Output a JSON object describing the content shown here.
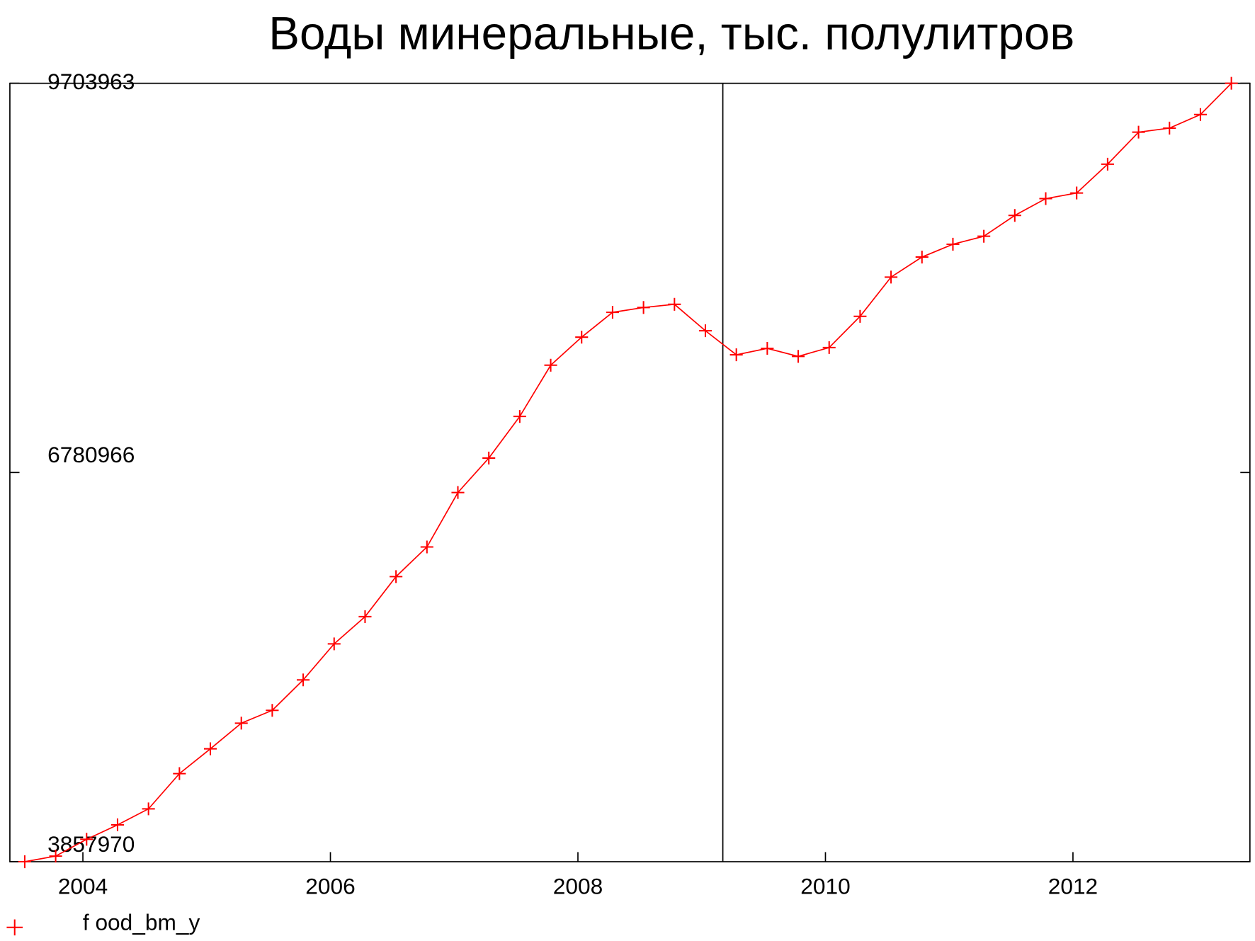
{
  "chart_data": {
    "type": "line",
    "title": "Воды минеральные, тыс. полулитров",
    "x": [
      2003.53,
      2003.78,
      2004.03,
      2004.28,
      2004.53,
      2004.78,
      2005.03,
      2005.28,
      2005.53,
      2005.78,
      2006.03,
      2006.28,
      2006.53,
      2006.78,
      2007.03,
      2007.28,
      2007.53,
      2007.78,
      2008.03,
      2008.28,
      2008.53,
      2008.78,
      2009.03,
      2009.28,
      2009.53,
      2009.78,
      2010.03,
      2010.28,
      2010.53,
      2010.78,
      2011.03,
      2011.28,
      2011.53,
      2011.78,
      2012.03,
      2012.28,
      2012.53,
      2012.78,
      2013.03,
      2013.28
    ],
    "series": [
      {
        "name": "f ood_bm_y",
        "color": "#ff0000",
        "values": [
          3858000,
          3900100,
          4026400,
          4134700,
          4254900,
          4519600,
          4706000,
          4898500,
          4994700,
          5223300,
          5493900,
          5698400,
          5999100,
          6221700,
          6630600,
          6889300,
          7202000,
          7586900,
          7797400,
          7983900,
          8020000,
          8044000,
          7845500,
          7665100,
          7713200,
          7653100,
          7719200,
          7953800,
          8248500,
          8398900,
          8495100,
          8555200,
          8711600,
          8837900,
          8880000,
          9096500,
          9337100,
          9367200,
          9469400,
          9703963
        ]
      }
    ],
    "xlim": [
      2003.41,
      2013.43
    ],
    "xticks": [
      2004,
      2006,
      2008,
      2010,
      2012
    ],
    "ylim": [
      3857970,
      9703963
    ],
    "yticks": [
      3857970,
      6780966,
      9703963
    ],
    "legend": "bottom-left"
  }
}
